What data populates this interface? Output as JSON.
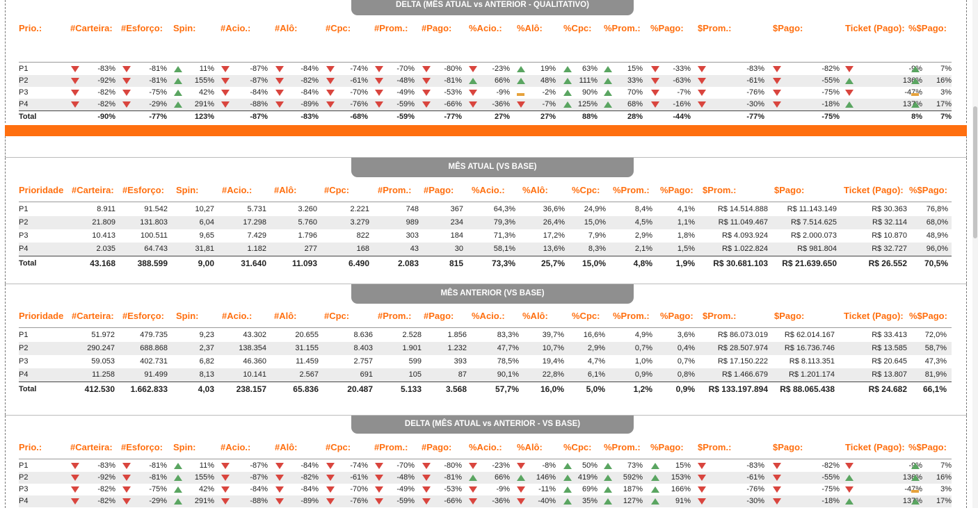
{
  "colors": {
    "accent": "#ff6f0f",
    "up": "#5aa561",
    "down": "#d9453e",
    "flat": "#e6a23c",
    "header_tab": "#8f8f8f"
  },
  "section1": {
    "title": "DELTA (MÊS ATUAL vs ANTERIOR - QUALITATIVO)",
    "headers": [
      "Prio.:",
      "#Carteira:",
      "#Esforço:",
      "Spin:",
      "#Acio.:",
      "#Alô:",
      "#Cpc:",
      "#Prom.:",
      "#Pago:",
      "%Acio.:",
      "%Alô:",
      "%Cpc:",
      "%Prom.:",
      "%Pago:",
      "$Prom.:",
      "$Pago:",
      "Ticket (Pago):",
      "%$Pago:"
    ],
    "rows": [
      {
        "label": "P1",
        "cells": [
          [
            "down",
            "-83%"
          ],
          [
            "down",
            "-81%"
          ],
          [
            "up",
            "11%"
          ],
          [
            "down",
            "-87%"
          ],
          [
            "down",
            "-84%"
          ],
          [
            "down",
            "-74%"
          ],
          [
            "down",
            "-70%"
          ],
          [
            "down",
            "-80%"
          ],
          [
            "down",
            "-23%"
          ],
          [
            "up",
            "19%"
          ],
          [
            "up",
            "63%"
          ],
          [
            "up",
            "15%"
          ],
          [
            "down",
            "-33%"
          ],
          [
            "down",
            "-83%"
          ],
          [
            "down",
            "-82%"
          ],
          [
            "down",
            "-9%"
          ],
          [
            "up",
            "7%"
          ]
        ]
      },
      {
        "label": "P2",
        "cells": [
          [
            "down",
            "-92%"
          ],
          [
            "down",
            "-81%"
          ],
          [
            "up",
            "155%"
          ],
          [
            "down",
            "-87%"
          ],
          [
            "down",
            "-82%"
          ],
          [
            "down",
            "-61%"
          ],
          [
            "down",
            "-48%"
          ],
          [
            "down",
            "-81%"
          ],
          [
            "up",
            "66%"
          ],
          [
            "up",
            "48%"
          ],
          [
            "up",
            "111%"
          ],
          [
            "up",
            "33%"
          ],
          [
            "down",
            "-63%"
          ],
          [
            "down",
            "-61%"
          ],
          [
            "down",
            "-55%"
          ],
          [
            "up",
            "136%"
          ],
          [
            "up",
            "16%"
          ]
        ]
      },
      {
        "label": "P3",
        "cells": [
          [
            "down",
            "-82%"
          ],
          [
            "down",
            "-75%"
          ],
          [
            "up",
            "42%"
          ],
          [
            "down",
            "-84%"
          ],
          [
            "down",
            "-84%"
          ],
          [
            "down",
            "-70%"
          ],
          [
            "down",
            "-49%"
          ],
          [
            "down",
            "-53%"
          ],
          [
            "down",
            "-9%"
          ],
          [
            "flat",
            "-2%"
          ],
          [
            "up",
            "90%"
          ],
          [
            "up",
            "70%"
          ],
          [
            "down",
            "-7%"
          ],
          [
            "down",
            "-76%"
          ],
          [
            "down",
            "-75%"
          ],
          [
            "down",
            "-47%"
          ],
          [
            "flat",
            "3%"
          ]
        ]
      },
      {
        "label": "P4",
        "cells": [
          [
            "down",
            "-82%"
          ],
          [
            "down",
            "-29%"
          ],
          [
            "up",
            "291%"
          ],
          [
            "down",
            "-88%"
          ],
          [
            "down",
            "-89%"
          ],
          [
            "down",
            "-76%"
          ],
          [
            "down",
            "-59%"
          ],
          [
            "down",
            "-66%"
          ],
          [
            "down",
            "-36%"
          ],
          [
            "down",
            "-7%"
          ],
          [
            "up",
            "125%"
          ],
          [
            "up",
            "68%"
          ],
          [
            "down",
            "-16%"
          ],
          [
            "down",
            "-30%"
          ],
          [
            "down",
            "-18%"
          ],
          [
            "up",
            "137%"
          ],
          [
            "up",
            "17%"
          ]
        ]
      }
    ],
    "total": {
      "label": "Total",
      "cells": [
        "-90%",
        "-77%",
        "123%",
        "-87%",
        "-83%",
        "-68%",
        "-59%",
        "-77%",
        "27%",
        "27%",
        "88%",
        "28%",
        "-44%",
        "-77%",
        "-75%",
        "8%",
        "7%"
      ]
    }
  },
  "section2": {
    "title": "MÊS ATUAL (VS BASE)",
    "headers": [
      "Prioridade",
      "#Carteira:",
      "#Esforço:",
      "Spin:",
      "#Acio.:",
      "#Alô:",
      "#Cpc:",
      "#Prom.:",
      "#Pago:",
      "%Acio.:",
      "%Alô:",
      "%Cpc:",
      "%Prom.:",
      "%Pago:",
      "$Prom.:",
      "$Pago:",
      "Ticket (Pago):",
      "%$Pago:"
    ],
    "rows": [
      {
        "label": "P1",
        "cells": [
          "8.911",
          "91.542",
          "10,27",
          "5.731",
          "3.260",
          "2.221",
          "748",
          "367",
          "64,3%",
          "36,6%",
          "24,9%",
          "8,4%",
          "4,1%",
          "R$ 14.514.888",
          "R$ 11.143.149",
          "R$ 30.363",
          "76,8%"
        ]
      },
      {
        "label": "P2",
        "cells": [
          "21.809",
          "131.803",
          "6,04",
          "17.298",
          "5.760",
          "3.279",
          "989",
          "234",
          "79,3%",
          "26,4%",
          "15,0%",
          "4,5%",
          "1,1%",
          "R$ 11.049.467",
          "R$ 7.514.625",
          "R$ 32.114",
          "68,0%"
        ]
      },
      {
        "label": "P3",
        "cells": [
          "10.413",
          "100.511",
          "9,65",
          "7.429",
          "1.796",
          "822",
          "303",
          "184",
          "71,3%",
          "17,2%",
          "7,9%",
          "2,9%",
          "1,8%",
          "R$ 4.093.924",
          "R$ 2.000.073",
          "R$ 10.870",
          "48,9%"
        ]
      },
      {
        "label": "P4",
        "cells": [
          "2.035",
          "64.743",
          "31,81",
          "1.182",
          "277",
          "168",
          "43",
          "30",
          "58,1%",
          "13,6%",
          "8,3%",
          "2,1%",
          "1,5%",
          "R$ 1.022.824",
          "R$ 981.804",
          "R$ 32.727",
          "96,0%"
        ]
      }
    ],
    "total": {
      "label": "Total",
      "cells": [
        "43.168",
        "388.599",
        "9,00",
        "31.640",
        "11.093",
        "6.490",
        "2.083",
        "815",
        "73,3%",
        "25,7%",
        "15,0%",
        "4,8%",
        "1,9%",
        "R$ 30.681.103",
        "R$ 21.639.650",
        "R$ 26.552",
        "70,5%"
      ]
    }
  },
  "section3": {
    "title": "MÊS ANTERIOR (VS BASE)",
    "headers": [
      "Prioridade",
      "#Carteira:",
      "#Esforço:",
      "Spin:",
      "#Acio.:",
      "#Alô:",
      "#Cpc:",
      "#Prom.:",
      "#Pago:",
      "%Acio.:",
      "%Alô:",
      "%Cpc:",
      "%Prom.:",
      "%Pago:",
      "$Prom.:",
      "$Pago:",
      "Ticket (Pago):",
      "%$Pago:"
    ],
    "rows": [
      {
        "label": "P1",
        "cells": [
          "51.972",
          "479.735",
          "9,23",
          "43.302",
          "20.655",
          "8.636",
          "2.528",
          "1.856",
          "83,3%",
          "39,7%",
          "16,6%",
          "4,9%",
          "3,6%",
          "R$ 86.073.019",
          "R$ 62.014.167",
          "R$ 33.413",
          "72,0%"
        ]
      },
      {
        "label": "P2",
        "cells": [
          "290.247",
          "688.868",
          "2,37",
          "138.354",
          "31.155",
          "8.403",
          "1.901",
          "1.232",
          "47,7%",
          "10,7%",
          "2,9%",
          "0,7%",
          "0,4%",
          "R$ 28.507.974",
          "R$ 16.736.746",
          "R$ 13.585",
          "58,7%"
        ]
      },
      {
        "label": "P3",
        "cells": [
          "59.053",
          "402.731",
          "6,82",
          "46.360",
          "11.459",
          "2.757",
          "599",
          "393",
          "78,5%",
          "19,4%",
          "4,7%",
          "1,0%",
          "0,7%",
          "R$ 17.150.222",
          "R$ 8.113.351",
          "R$ 20.645",
          "47,3%"
        ]
      },
      {
        "label": "P4",
        "cells": [
          "11.258",
          "91.499",
          "8,13",
          "10.141",
          "2.567",
          "691",
          "105",
          "87",
          "90,1%",
          "22,8%",
          "6,1%",
          "0,9%",
          "0,8%",
          "R$ 1.466.679",
          "R$ 1.201.174",
          "R$ 13.807",
          "81,9%"
        ]
      }
    ],
    "total": {
      "label": "Total",
      "cells": [
        "412.530",
        "1.662.833",
        "4,03",
        "238.157",
        "65.836",
        "20.487",
        "5.133",
        "3.568",
        "57,7%",
        "16,0%",
        "5,0%",
        "1,2%",
        "0,9%",
        "R$ 133.197.894",
        "R$ 88.065.438",
        "R$ 24.682",
        "66,1%"
      ]
    }
  },
  "section4": {
    "title": "DELTA (MÊS ATUAL vs ANTERIOR - VS BASE)",
    "headers": [
      "Prio.:",
      "#Carteira:",
      "#Esforço:",
      "Spin:",
      "#Acio.:",
      "#Alô:",
      "#Cpc:",
      "#Prom.:",
      "#Pago:",
      "%Acio.:",
      "%Alô:",
      "%Cpc:",
      "%Prom.:",
      "%Pago:",
      "$Prom.:",
      "$Pago:",
      "Ticket (Pago):",
      "%$Pago:"
    ],
    "rows": [
      {
        "label": "P1",
        "cells": [
          [
            "down",
            "-83%"
          ],
          [
            "down",
            "-81%"
          ],
          [
            "up",
            "11%"
          ],
          [
            "down",
            "-87%"
          ],
          [
            "down",
            "-84%"
          ],
          [
            "down",
            "-74%"
          ],
          [
            "down",
            "-70%"
          ],
          [
            "down",
            "-80%"
          ],
          [
            "down",
            "-23%"
          ],
          [
            "down",
            "-8%"
          ],
          [
            "up",
            "50%"
          ],
          [
            "up",
            "73%"
          ],
          [
            "up",
            "15%"
          ],
          [
            "down",
            "-83%"
          ],
          [
            "down",
            "-82%"
          ],
          [
            "down",
            "-9%"
          ],
          [
            "up",
            "7%"
          ]
        ]
      },
      {
        "label": "P2",
        "cells": [
          [
            "down",
            "-92%"
          ],
          [
            "down",
            "-81%"
          ],
          [
            "up",
            "155%"
          ],
          [
            "down",
            "-87%"
          ],
          [
            "down",
            "-82%"
          ],
          [
            "down",
            "-61%"
          ],
          [
            "down",
            "-48%"
          ],
          [
            "down",
            "-81%"
          ],
          [
            "up",
            "66%"
          ],
          [
            "up",
            "146%"
          ],
          [
            "up",
            "419%"
          ],
          [
            "up",
            "592%"
          ],
          [
            "up",
            "153%"
          ],
          [
            "down",
            "-61%"
          ],
          [
            "down",
            "-55%"
          ],
          [
            "up",
            "136%"
          ],
          [
            "up",
            "16%"
          ]
        ]
      },
      {
        "label": "P3",
        "cells": [
          [
            "down",
            "-82%"
          ],
          [
            "down",
            "-75%"
          ],
          [
            "up",
            "42%"
          ],
          [
            "down",
            "-84%"
          ],
          [
            "down",
            "-84%"
          ],
          [
            "down",
            "-70%"
          ],
          [
            "down",
            "-49%"
          ],
          [
            "down",
            "-53%"
          ],
          [
            "down",
            "-9%"
          ],
          [
            "down",
            "-11%"
          ],
          [
            "up",
            "69%"
          ],
          [
            "up",
            "187%"
          ],
          [
            "up",
            "166%"
          ],
          [
            "down",
            "-76%"
          ],
          [
            "down",
            "-75%"
          ],
          [
            "down",
            "-47%"
          ],
          [
            "flat",
            "3%"
          ]
        ]
      },
      {
        "label": "P4",
        "cells": [
          [
            "down",
            "-82%"
          ],
          [
            "down",
            "-29%"
          ],
          [
            "up",
            "291%"
          ],
          [
            "down",
            "-88%"
          ],
          [
            "down",
            "-89%"
          ],
          [
            "down",
            "-76%"
          ],
          [
            "down",
            "-59%"
          ],
          [
            "down",
            "-66%"
          ],
          [
            "down",
            "-36%"
          ],
          [
            "down",
            "-40%"
          ],
          [
            "up",
            "35%"
          ],
          [
            "up",
            "127%"
          ],
          [
            "up",
            "91%"
          ],
          [
            "down",
            "-30%"
          ],
          [
            "down",
            "-18%"
          ],
          [
            "up",
            "137%"
          ],
          [
            "up",
            "17%"
          ]
        ]
      }
    ]
  }
}
